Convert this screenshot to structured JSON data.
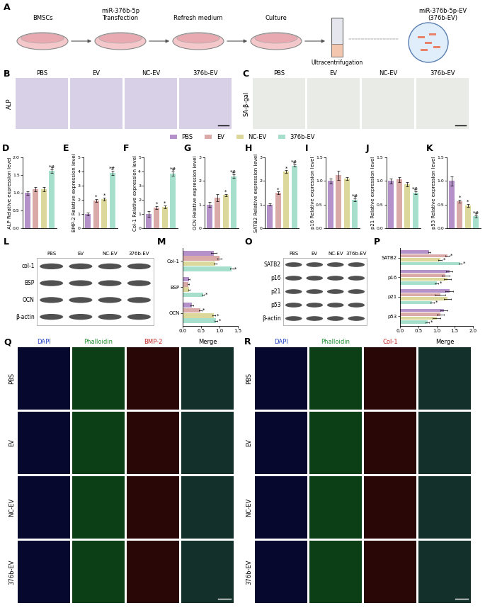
{
  "panel_labels": [
    "A",
    "B",
    "C",
    "D",
    "E",
    "F",
    "G",
    "H",
    "I",
    "J",
    "K",
    "L",
    "M",
    "O",
    "P",
    "Q",
    "R"
  ],
  "shared_legend": [
    {
      "name": "PBS",
      "color": "#b591c9"
    },
    {
      "name": "EV",
      "color": "#d9aaa8"
    },
    {
      "name": "NC-EV",
      "color": "#dcd79b"
    },
    {
      "name": "376b-EV",
      "color": "#a6e0cc"
    }
  ],
  "schematic": {
    "steps": [
      "BMSCs",
      "miR-376b-5p\nTransfection",
      "Refresh medium",
      "Culture"
    ],
    "process": "Ultracentrifugation",
    "product": "miR-376b-5p-EV\n(376b-EV)"
  },
  "stains": [
    {
      "label": "ALP",
      "columns": [
        "PBS",
        "EV",
        "NC-EV",
        "376b-EV"
      ]
    },
    {
      "label": "SA-β-gal",
      "columns": [
        "PBS",
        "EV",
        "NC-EV",
        "376b-EV"
      ]
    }
  ],
  "blots": [
    {
      "columns": [
        "PBS",
        "EV",
        "NC-EV",
        "376b-EV"
      ],
      "rows": [
        "col-1",
        "BSP",
        "OCN",
        "β-actin"
      ]
    },
    {
      "columns": [
        "PBS",
        "EV",
        "NC-EV",
        "376b-EV"
      ],
      "rows": [
        "SATB2",
        "p16",
        "p21",
        "p53",
        "β-actin"
      ]
    }
  ],
  "fluorescence": [
    {
      "rows": [
        "PBS",
        "EV",
        "NC-EV",
        "376b-EV"
      ],
      "channels": [
        "DAPI",
        "Phalloidin",
        "BMP-2",
        "Merge"
      ]
    },
    {
      "rows": [
        "PBS",
        "EV",
        "NC-EV",
        "376b-EV"
      ],
      "channels": [
        "DAPI",
        "Phalloidin",
        "Col-1",
        "Merge"
      ]
    }
  ],
  "chart_data": [
    {
      "type": "bar",
      "ylabel": "ALP Relative expression level",
      "categories": [
        null,
        null,
        null,
        null
      ],
      "colors": [
        "#b591c9",
        "#d9aaa8",
        "#dcd79b",
        "#a6e0cc"
      ],
      "values": [
        1.0,
        1.1,
        1.1,
        1.62
      ],
      "errors": [
        0.05,
        0.06,
        0.06,
        0.05
      ],
      "significance": [
        null,
        null,
        null,
        "*#"
      ],
      "ylim": [
        0,
        2
      ],
      "yticks": [
        {
          "value": 0,
          "label": "0.0"
        },
        {
          "value": 0.5,
          "label": "0.5"
        },
        {
          "value": 1,
          "label": "1.0"
        },
        {
          "value": 1.5,
          "label": "1.5"
        },
        {
          "value": 2,
          "label": "2.0"
        }
      ],
      "tick_labels": "y"
    },
    {
      "type": "bar",
      "ylabel": "BMP-2 Relative expression level",
      "categories": [
        null,
        null,
        null,
        null
      ],
      "colors": [
        "#b591c9",
        "#d9aaa8",
        "#dcd79b",
        "#a6e0cc"
      ],
      "values": [
        1.0,
        1.95,
        2.05,
        3.9
      ],
      "errors": [
        0.1,
        0.1,
        0.1,
        0.15
      ],
      "significance": [
        null,
        "*",
        "*",
        "*#"
      ],
      "ylim": [
        0,
        5
      ],
      "yticks": [
        0,
        1,
        2,
        3,
        4,
        5
      ],
      "tick_labels": "y"
    },
    {
      "type": "bar",
      "ylabel": "Col-1 Relative expression level",
      "categories": [
        null,
        null,
        null,
        null
      ],
      "colors": [
        "#b591c9",
        "#d9aaa8",
        "#dcd79b",
        "#a6e0cc"
      ],
      "values": [
        1.0,
        1.45,
        1.5,
        3.85
      ],
      "errors": [
        0.2,
        0.1,
        0.1,
        0.15
      ],
      "significance": [
        null,
        "*",
        "*",
        "*#"
      ],
      "ylim": [
        0,
        5
      ],
      "yticks": [
        0,
        1,
        2,
        3,
        4,
        5
      ],
      "tick_labels": "y"
    },
    {
      "type": "bar",
      "ylabel": "OCN Relative expression level",
      "categories": [
        null,
        null,
        null,
        null
      ],
      "colors": [
        "#b591c9",
        "#d9aaa8",
        "#dcd79b",
        "#a6e0cc"
      ],
      "values": [
        1.0,
        1.3,
        1.4,
        2.2
      ],
      "errors": [
        0.1,
        0.15,
        0.05,
        0.08
      ],
      "significance": [
        null,
        null,
        "*",
        "*#"
      ],
      "ylim": [
        0,
        3
      ],
      "yticks": [
        0,
        1,
        2,
        3
      ],
      "tick_labels": "y"
    },
    {
      "type": "bar",
      "ylabel": "SATB2 Relative expression level",
      "categories": [
        null,
        null,
        null,
        null
      ],
      "colors": [
        "#b591c9",
        "#d9aaa8",
        "#dcd79b",
        "#a6e0cc"
      ],
      "values": [
        1.0,
        1.5,
        2.4,
        2.65
      ],
      "errors": [
        0.05,
        0.05,
        0.05,
        0.05
      ],
      "significance": [
        null,
        "*",
        "*",
        "*#"
      ],
      "ylim": [
        0,
        3
      ],
      "yticks": [
        0,
        1,
        2,
        3
      ],
      "tick_labels": "y"
    },
    {
      "type": "bar",
      "ylabel": "p16 Relative expression level",
      "categories": [
        null,
        null,
        null,
        null
      ],
      "colors": [
        "#b591c9",
        "#d9aaa8",
        "#dcd79b",
        "#a6e0cc"
      ],
      "values": [
        1.0,
        1.12,
        1.05,
        0.6
      ],
      "errors": [
        0.05,
        0.1,
        0.03,
        0.03
      ],
      "significance": [
        null,
        null,
        null,
        "*#"
      ],
      "ylim": [
        0,
        1.5
      ],
      "yticks": [
        {
          "value": 0,
          "label": "0.0"
        },
        {
          "value": 0.5,
          "label": "0.5"
        },
        {
          "value": 1,
          "label": "1.0"
        },
        {
          "value": 1.5,
          "label": "1.5"
        }
      ],
      "tick_labels": "y"
    },
    {
      "type": "bar",
      "ylabel": "p21 Relative expression level",
      "categories": [
        null,
        null,
        null,
        null
      ],
      "colors": [
        "#b591c9",
        "#d9aaa8",
        "#dcd79b",
        "#a6e0cc"
      ],
      "values": [
        1.0,
        1.03,
        0.93,
        0.75
      ],
      "errors": [
        0.05,
        0.05,
        0.05,
        0.03
      ],
      "significance": [
        null,
        null,
        null,
        "*#"
      ],
      "ylim": [
        0,
        1.5
      ],
      "yticks": [
        {
          "value": 0,
          "label": "0.0"
        },
        {
          "value": 0.5,
          "label": "0.5"
        },
        {
          "value": 1,
          "label": "1.0"
        },
        {
          "value": 1.5,
          "label": "1.5"
        }
      ],
      "tick_labels": "y"
    },
    {
      "type": "bar",
      "ylabel": "p53 Relative expression level",
      "categories": [
        null,
        null,
        null,
        null
      ],
      "colors": [
        "#b591c9",
        "#d9aaa8",
        "#dcd79b",
        "#a6e0cc"
      ],
      "values": [
        1.0,
        0.57,
        0.48,
        0.25
      ],
      "errors": [
        0.1,
        0.03,
        0.03,
        0.02
      ],
      "significance": [
        null,
        "*",
        "*",
        "*#"
      ],
      "ylim": [
        0,
        1.5
      ],
      "yticks": [
        {
          "value": 0,
          "label": "0.0"
        },
        {
          "value": 0.5,
          "label": "0.5"
        },
        {
          "value": 1,
          "label": "1.0"
        },
        {
          "value": 1.5,
          "label": "1.5"
        }
      ],
      "tick_labels": "y"
    },
    {
      "type": "bar",
      "orientation": "horizontal",
      "categories": [
        "Col-1",
        "BSP",
        "OCN"
      ],
      "series": [
        {
          "color": "#b591c9",
          "values": [
            0.85,
            0.18,
            0.25
          ],
          "errors": [
            0.08,
            0.02,
            0.04
          ],
          "significance": [
            null,
            null,
            null
          ]
        },
        {
          "color": "#d9aaa8",
          "values": [
            1.0,
            0.15,
            0.48
          ],
          "errors": [
            0.05,
            0.02,
            0.03
          ],
          "significance": [
            null,
            null,
            "*"
          ]
        },
        {
          "color": "#dcd79b",
          "values": [
            0.88,
            0.17,
            0.85
          ],
          "errors": [
            0.04,
            0.02,
            0.04
          ],
          "significance": [
            null,
            null,
            "*"
          ]
        },
        {
          "color": "#a6e0cc",
          "values": [
            1.33,
            0.55,
            0.9
          ],
          "errors": [
            0.05,
            0.03,
            0.04
          ],
          "significance": [
            "*",
            "*",
            "*"
          ]
        }
      ],
      "xlim": [
        0,
        1.5
      ],
      "xticks": [
        {
          "value": 0,
          "label": "0.0"
        },
        {
          "value": 0.5,
          "label": "0.5"
        },
        {
          "value": 1,
          "label": "1.0"
        },
        {
          "value": 1.5,
          "label": "1.5"
        }
      ]
    },
    {
      "type": "bar",
      "orientation": "horizontal",
      "categories": [
        "SATB2",
        "p16",
        "p21",
        "p53"
      ],
      "series": [
        {
          "color": "#b591c9",
          "values": [
            0.8,
            1.35,
            1.35,
            1.2
          ],
          "errors": [
            0.03,
            0.08,
            0.1,
            0.1
          ],
          "significance": [
            null,
            null,
            null,
            null
          ]
        },
        {
          "color": "#d9aaa8",
          "values": [
            1.3,
            1.25,
            1.1,
            1.1
          ],
          "errors": [
            0.05,
            0.1,
            0.15,
            0.1
          ],
          "significance": [
            "*",
            null,
            null,
            null
          ]
        },
        {
          "color": "#dcd79b",
          "values": [
            1.1,
            1.3,
            1.3,
            1.0
          ],
          "errors": [
            0.05,
            0.1,
            0.1,
            0.1
          ],
          "significance": [
            "*",
            null,
            null,
            null
          ]
        },
        {
          "color": "#a6e0cc",
          "values": [
            1.65,
            1.0,
            0.88,
            0.75
          ],
          "errors": [
            0.04,
            0.05,
            0.05,
            0.05
          ],
          "significance": [
            "*",
            "*",
            "*",
            "*"
          ]
        }
      ],
      "xlim": [
        0,
        2
      ],
      "xticks": [
        {
          "value": 0,
          "label": "0.0"
        },
        {
          "value": 0.5,
          "label": "0.5"
        },
        {
          "value": 1,
          "label": "1.0"
        },
        {
          "value": 1.5,
          "label": "1.5"
        },
        {
          "value": 2,
          "label": "2.0"
        }
      ]
    }
  ]
}
